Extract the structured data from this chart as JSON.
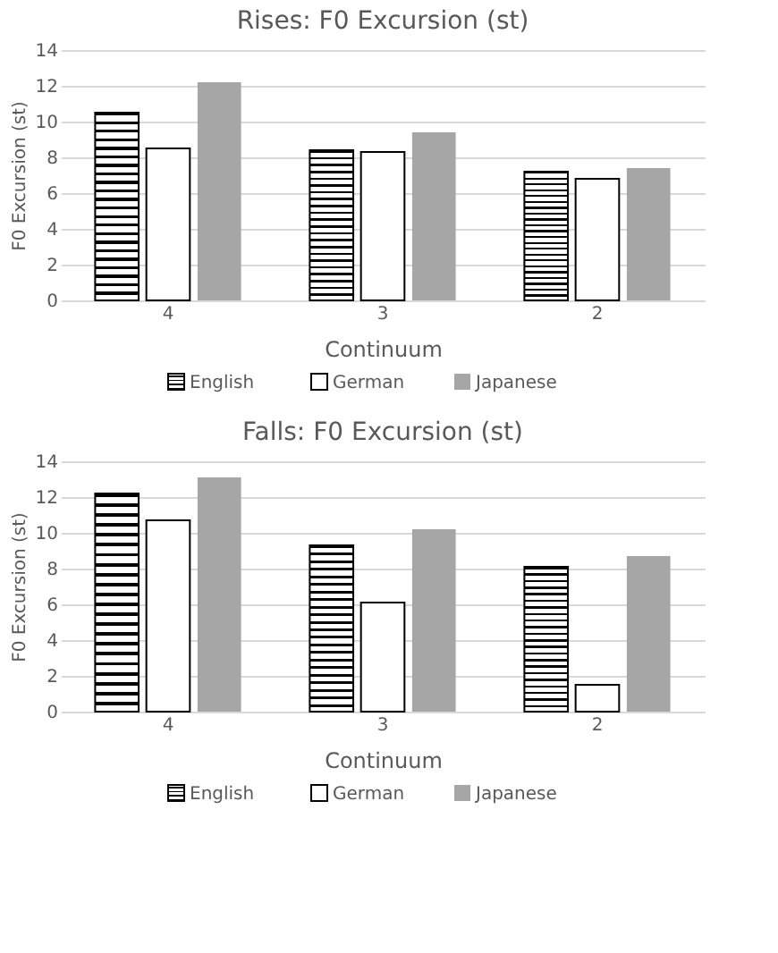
{
  "chart_data": [
    {
      "type": "bar",
      "title": "Rises: F0 Excursion (st)",
      "xlabel": "Continuum",
      "ylabel": "F0 Excursion (st)",
      "categories": [
        "4",
        "3",
        "2"
      ],
      "series": [
        {
          "name": "English",
          "color": "#000000",
          "values": [
            10.5,
            8.4,
            7.2
          ]
        },
        {
          "name": "German",
          "color": "#ffffff",
          "values": [
            8.5,
            8.3,
            6.8
          ]
        },
        {
          "name": "Japanese",
          "color": "#a6a6a6",
          "values": [
            12.2,
            9.4,
            7.4
          ]
        }
      ],
      "ylim": [
        0,
        14
      ],
      "yticks": [
        0,
        2,
        4,
        6,
        8,
        10,
        12,
        14
      ],
      "grid": "y",
      "legend": "bottom"
    },
    {
      "type": "bar",
      "title": "Falls: F0 Excursion (st)",
      "xlabel": "Continuum",
      "ylabel": "F0 Excursion (st)",
      "categories": [
        "4",
        "3",
        "2"
      ],
      "series": [
        {
          "name": "English",
          "color": "#000000",
          "values": [
            12.2,
            9.3,
            8.1
          ]
        },
        {
          "name": "German",
          "color": "#ffffff",
          "values": [
            10.7,
            6.1,
            1.5
          ]
        },
        {
          "name": "Japanese",
          "color": "#a6a6a6",
          "values": [
            13.1,
            10.2,
            8.7
          ]
        }
      ],
      "ylim": [
        0,
        14
      ],
      "yticks": [
        0,
        2,
        4,
        6,
        8,
        10,
        12,
        14
      ],
      "grid": "y",
      "legend": "bottom"
    }
  ]
}
